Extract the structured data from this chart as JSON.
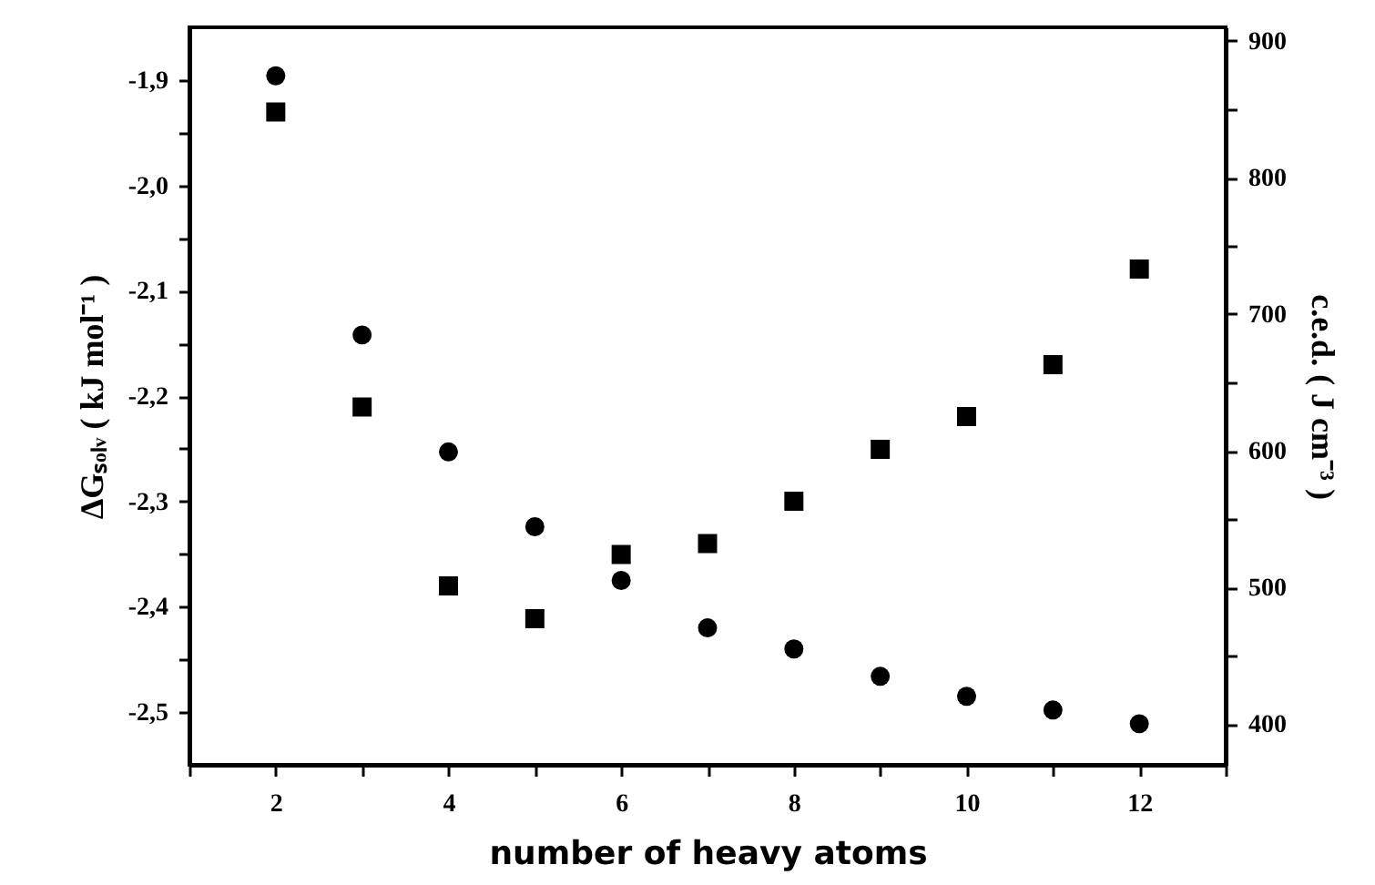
{
  "chart_data": {
    "type": "scatter",
    "xlabel": "number of heavy atoms",
    "ylabel": "ΔGₛₒₗᵥ   ( kJ mol⁻¹ )",
    "y2label": "c.e.d.   ( J cm⁻³ )",
    "x": [
      2,
      3,
      4,
      5,
      6,
      7,
      8,
      9,
      10,
      11,
      12
    ],
    "series": [
      {
        "color": "#000000",
        "marker": "circle",
        "values": [
          -1.896,
          -2.142,
          -2.253,
          -2.324,
          -2.375,
          -2.42,
          -2.44,
          -2.466,
          -2.485,
          -2.498,
          -2.511
        ]
      },
      {
        "color": "#000000",
        "marker": "square",
        "axis": "y2",
        "values": [
          848,
          632,
          501,
          477,
          524,
          532,
          563,
          601,
          625,
          663,
          733
        ]
      }
    ],
    "xlim": [
      1,
      13
    ],
    "xticks": [
      {
        "value": 1,
        "label": null
      },
      2,
      {
        "value": 3,
        "label": null
      },
      4,
      {
        "value": 5,
        "label": null
      },
      6,
      {
        "value": 7,
        "label": null
      },
      8,
      {
        "value": 9,
        "label": null
      },
      10,
      {
        "value": 11,
        "label": null
      },
      12,
      {
        "value": 13,
        "label": null
      }
    ],
    "ylim": [
      -2.55,
      -1.85
    ],
    "yticks": [
      {
        "value": -1.9,
        "label": "-1,9"
      },
      {
        "value": -1.95,
        "label": null
      },
      {
        "value": -2.0,
        "label": "-2,0"
      },
      {
        "value": -2.05,
        "label": null
      },
      {
        "value": -2.1,
        "label": "-2,1"
      },
      {
        "value": -2.15,
        "label": null
      },
      {
        "value": -2.2,
        "label": "-2,2"
      },
      {
        "value": -2.25,
        "label": null
      },
      {
        "value": -2.3,
        "label": "-2,3"
      },
      {
        "value": -2.35,
        "label": null
      },
      {
        "value": -2.4,
        "label": "-2,4"
      },
      {
        "value": -2.45,
        "label": null
      },
      {
        "value": -2.5,
        "label": "-2,5"
      }
    ],
    "y2lim": [
      370,
      910
    ],
    "y2ticks": [
      400,
      {
        "value": 450,
        "label": null
      },
      500,
      {
        "value": 550,
        "label": null
      },
      600,
      {
        "value": 650,
        "label": null
      },
      700,
      {
        "value": 750,
        "label": null
      },
      800,
      {
        "value": 850,
        "label": null
      },
      900
    ],
    "grid": false
  }
}
